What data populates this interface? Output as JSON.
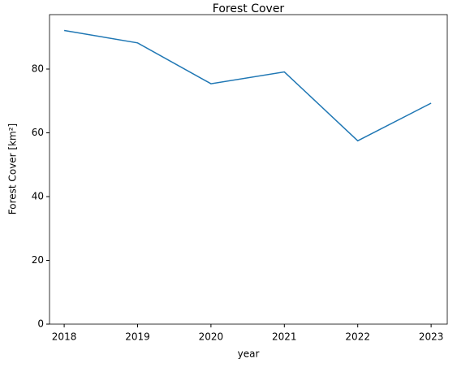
{
  "chart_data": {
    "type": "line",
    "title": "Forest Cover",
    "x_label": "year",
    "y_label": "Forest Cover [km²]",
    "x": [
      2018,
      2019,
      2020,
      2021,
      2022,
      2023
    ],
    "series": [
      {
        "name": "Forest Cover",
        "color": "#1f77b4",
        "values": [
          92.1,
          88.2,
          75.4,
          79.1,
          57.5,
          69.3
        ]
      }
    ],
    "xlim": [
      2017.8,
      2023.22
    ],
    "xticks": [
      2018,
      2019,
      2020,
      2021,
      2022,
      2023
    ],
    "ylim": [
      0,
      97.07
    ],
    "yticks": [
      0,
      20,
      40,
      60,
      80
    ]
  }
}
